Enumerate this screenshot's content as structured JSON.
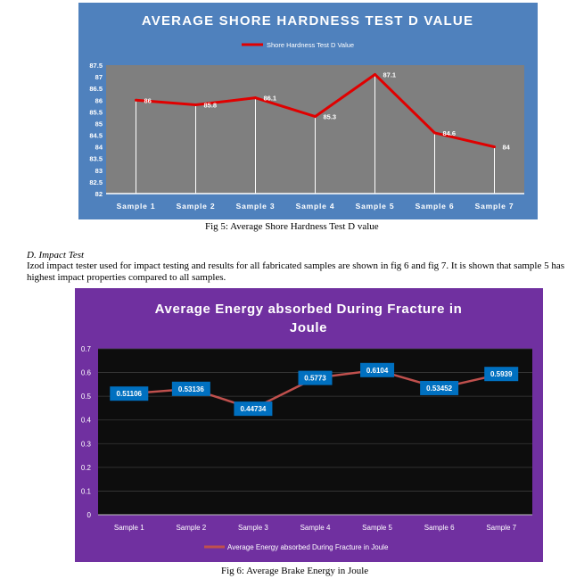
{
  "fig5_caption": "Fig 5: Average Shore Hardness Test D value",
  "fig6_caption": "Fig 6: Average Brake Energy in Joule",
  "section": {
    "heading": "D.   Impact Test",
    "body": "Izod impact tester used for impact testing and results for all fabricated samples are shown in fig 6 and fig 7. It is shown that sample 5 has highest impact properties compared to all samples."
  },
  "chart_data": [
    {
      "type": "line",
      "title": "AVERAGE SHORE HARDNESS TEST D VALUE",
      "xlabel": "",
      "ylabel": "",
      "categories": [
        "Sample 1",
        "Sample 2",
        "Sample 3",
        "Sample 4",
        "Sample 5",
        "Sample 6",
        "Sample 7"
      ],
      "series": [
        {
          "name": "Shore Hardness Test D Value",
          "values": [
            86,
            85.8,
            86.1,
            85.3,
            87.1,
            84.6,
            84
          ],
          "labels": [
            "86",
            "85.8",
            "86.1",
            "85.3",
            "87.1",
            "84.6",
            "84"
          ]
        }
      ],
      "ylim": [
        82,
        87.5
      ],
      "yticks": [
        "82",
        "82.5",
        "83",
        "83.5",
        "84",
        "84.5",
        "85",
        "85.5",
        "86",
        "86.5",
        "87",
        "87.5"
      ],
      "grid": false,
      "legend": "top",
      "colors": {
        "background": "#4f81bd",
        "plot_area": "#7f7f7f",
        "line": "#e00000",
        "text": "#ffffff"
      }
    },
    {
      "type": "line",
      "title": "Average Energy absorbed During Fracture in Joule",
      "xlabel": "",
      "ylabel": "",
      "categories": [
        "Sample 1",
        "Sample 2",
        "Sample 3",
        "Sample 4",
        "Sample 5",
        "Sample 6",
        "Sample 7"
      ],
      "series": [
        {
          "name": "Average Energy absorbed During Fracture in Joule",
          "values": [
            0.51106,
            0.53136,
            0.44734,
            0.5773,
            0.6104,
            0.53452,
            0.5939
          ],
          "labels": [
            "0.51106",
            "0.53136",
            "0.44734",
            "0.5773",
            "0.6104",
            "0.53452",
            "0.5939"
          ]
        }
      ],
      "ylim": [
        0,
        0.7
      ],
      "yticks": [
        "0",
        "0.1",
        "0.2",
        "0.3",
        "0.4",
        "0.5",
        "0.6",
        "0.7"
      ],
      "grid": true,
      "legend": "bottom",
      "colors": {
        "background": "#7030a0",
        "plot_area": "#0d0d0d",
        "line": "#c0504d",
        "label_box": "#0070c0",
        "text": "#ffffff"
      }
    }
  ]
}
